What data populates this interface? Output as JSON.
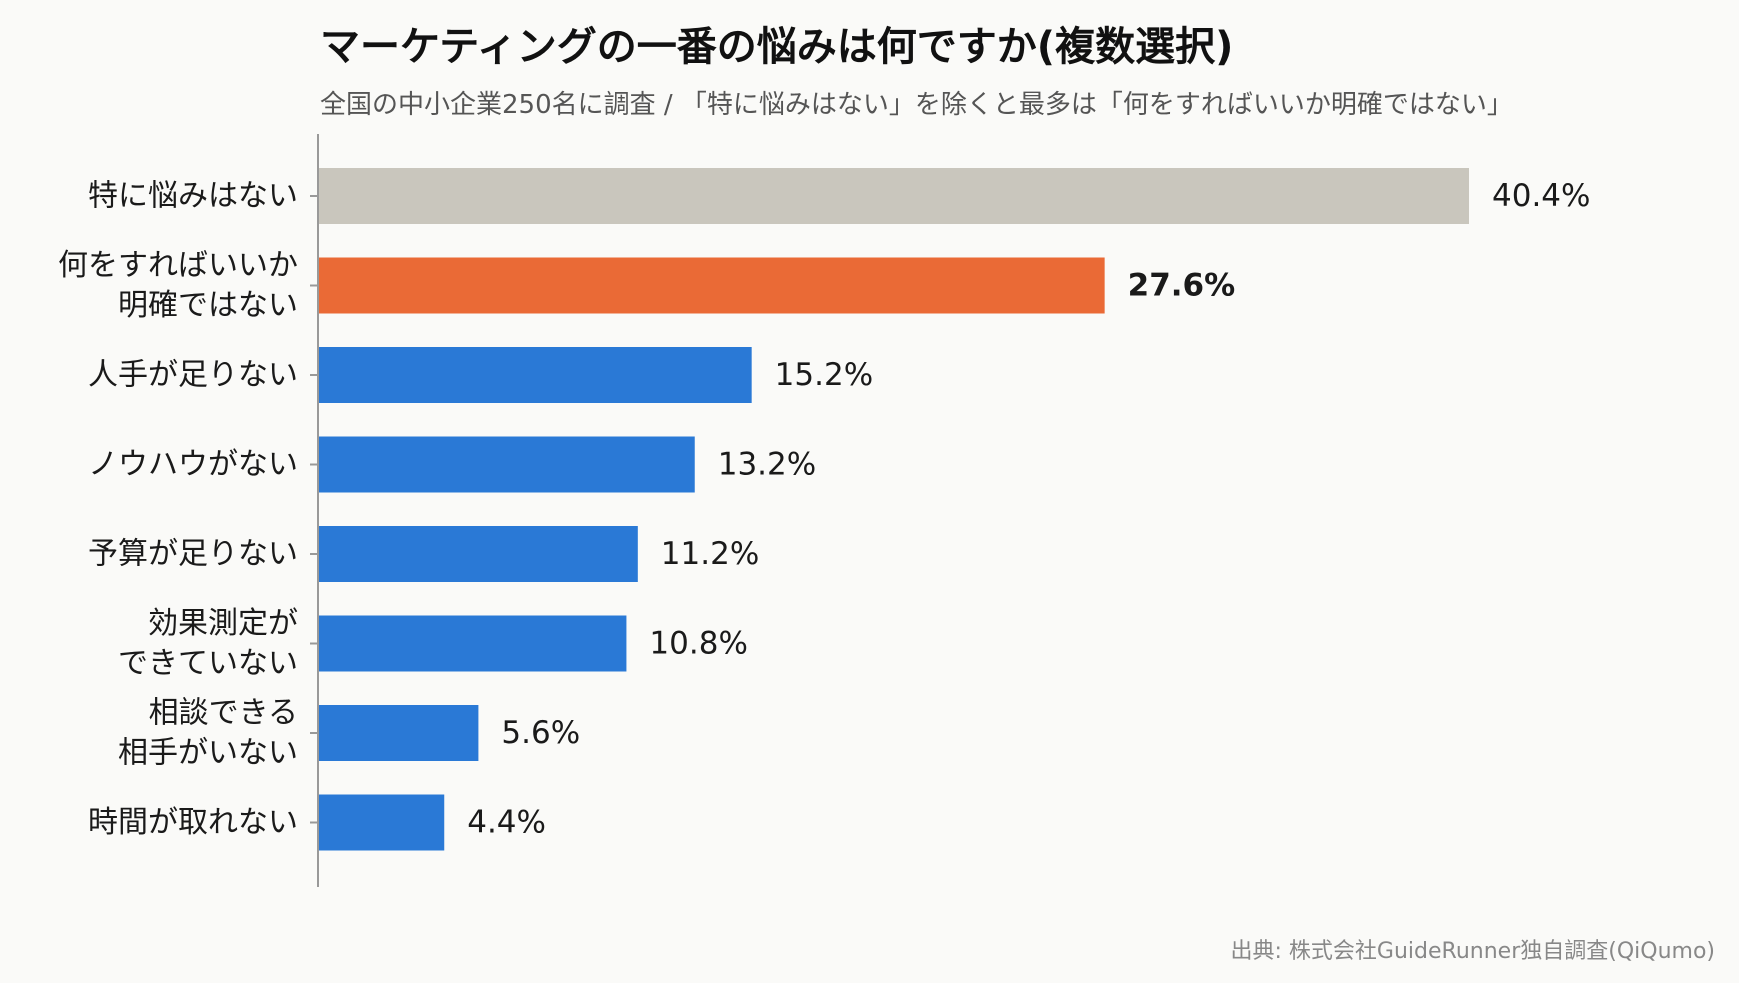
{
  "title": "マーケティングの一番の悩みは何ですか(複数選択)",
  "subtitle": "全国の中小企業250名に調査 / 「特に悩みはない」を除くと最多は「何をすればいいか明確ではない」",
  "source": "出典: 株式会社GuideRunner独自調査(QiQumo)",
  "colors": {
    "neutral": "#c9c6bd",
    "highlight": "#ea6a36",
    "default": "#2a79d6",
    "axis": "#999999",
    "background": "#fafaf8"
  },
  "chart_data": {
    "type": "bar",
    "orientation": "horizontal",
    "title": "マーケティングの一番の悩みは何ですか(複数選択)",
    "xlim": [
      0,
      40.4
    ],
    "grid": false,
    "unit": "%",
    "categories": [
      [
        "特に悩みはない"
      ],
      [
        "何をすればいいか",
        "明確ではない"
      ],
      [
        "人手が足りない"
      ],
      [
        "ノウハウがない"
      ],
      [
        "予算が足りない"
      ],
      [
        "効果測定が",
        "できていない"
      ],
      [
        "相談できる",
        "相手がいない"
      ],
      [
        "時間が取れない"
      ]
    ],
    "values": [
      40.4,
      27.6,
      15.2,
      13.2,
      11.2,
      10.8,
      5.6,
      4.4
    ],
    "value_labels": [
      "40.4%",
      "27.6%",
      "15.2%",
      "13.2%",
      "11.2%",
      "10.8%",
      "5.6%",
      "4.4%"
    ],
    "bar_styles": [
      "neutral",
      "highlight",
      "default",
      "default",
      "default",
      "default",
      "default",
      "default"
    ]
  }
}
